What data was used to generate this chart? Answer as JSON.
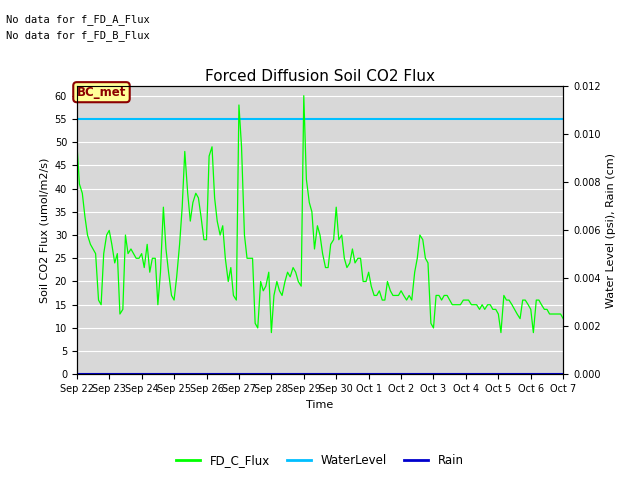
{
  "title": "Forced Diffusion Soil CO2 Flux",
  "xlabel": "Time",
  "ylabel_left": "Soil CO2 Flux (umol/m2/s)",
  "ylabel_right": "Water Level (psi), Rain (cm)",
  "no_data_text": [
    "No data for f_FD_A_Flux",
    "No data for f_FD_B_Flux"
  ],
  "bc_met_label": "BC_met",
  "bc_met_box_color": "#ffff99",
  "bc_met_text_color": "#8B0000",
  "ylim_left": [
    0,
    62
  ],
  "ylim_right": [
    0,
    0.012
  ],
  "water_level_value": 55,
  "water_level_color": "#00BFFF",
  "rain_value": 0,
  "rain_color": "#0000CD",
  "flux_color": "#00FF00",
  "background_color": "#D8D8D8",
  "grid_color": "#FFFFFF",
  "legend_entries": [
    "FD_C_Flux",
    "WaterLevel",
    "Rain"
  ],
  "legend_colors": [
    "#00FF00",
    "#00BFFF",
    "#0000CD"
  ],
  "x_tick_labels": [
    "Sep 22",
    "Sep 23",
    "Sep 24",
    "Sep 25",
    "Sep 26",
    "Sep 27",
    "Sep 28",
    "Sep 29",
    "Sep 30",
    "Oct 1",
    "Oct 2",
    "Oct 3",
    "Oct 4",
    "Oct 5",
    "Oct 6",
    "Oct 7"
  ],
  "fd_c_flux_data": {
    "dates_offset": [
      0.0,
      0.08,
      0.17,
      0.25,
      0.33,
      0.42,
      0.5,
      0.58,
      0.67,
      0.75,
      0.83,
      0.92,
      1.0,
      1.08,
      1.17,
      1.25,
      1.33,
      1.42,
      1.5,
      1.58,
      1.67,
      1.75,
      1.83,
      1.92,
      2.0,
      2.08,
      2.17,
      2.25,
      2.33,
      2.42,
      2.5,
      2.58,
      2.67,
      2.75,
      2.83,
      2.92,
      3.0,
      3.08,
      3.17,
      3.25,
      3.33,
      3.42,
      3.5,
      3.58,
      3.67,
      3.75,
      3.83,
      3.92,
      4.0,
      4.08,
      4.17,
      4.25,
      4.33,
      4.42,
      4.5,
      4.58,
      4.67,
      4.75,
      4.83,
      4.92,
      5.0,
      5.08,
      5.17,
      5.25,
      5.33,
      5.42,
      5.5,
      5.58,
      5.67,
      5.75,
      5.83,
      5.92,
      6.0,
      6.08,
      6.17,
      6.25,
      6.33,
      6.42,
      6.5,
      6.58,
      6.67,
      6.75,
      6.83,
      6.92,
      7.0,
      7.08,
      7.17,
      7.25,
      7.33,
      7.42,
      7.5,
      7.58,
      7.67,
      7.75,
      7.83,
      7.92,
      8.0,
      8.08,
      8.17,
      8.25,
      8.33,
      8.42,
      8.5,
      8.58,
      8.67,
      8.75,
      8.83,
      8.92,
      9.0,
      9.08,
      9.17,
      9.25,
      9.33,
      9.42,
      9.5,
      9.58,
      9.67,
      9.75,
      9.83,
      9.92,
      10.0,
      10.08,
      10.17,
      10.25,
      10.33,
      10.42,
      10.5,
      10.58,
      10.67,
      10.75,
      10.83,
      10.92,
      11.0,
      11.08,
      11.17,
      11.25,
      11.33,
      11.42,
      11.5,
      11.58,
      11.67,
      11.75,
      11.83,
      11.92,
      12.0,
      12.08,
      12.17,
      12.25,
      12.33,
      12.42,
      12.5,
      12.58,
      12.67,
      12.75,
      12.83,
      12.92,
      13.0,
      13.08,
      13.17,
      13.25,
      13.33,
      13.42,
      13.5,
      13.58,
      13.67,
      13.75,
      13.83,
      13.92,
      14.0,
      14.08,
      14.17,
      14.25,
      14.33,
      14.42,
      14.5,
      14.58,
      14.67,
      14.75,
      14.83,
      14.92,
      15.0
    ],
    "values": [
      50,
      41,
      39,
      34,
      30,
      28,
      27,
      26,
      16,
      15,
      26,
      30,
      31,
      28,
      24,
      26,
      13,
      14,
      30,
      26,
      27,
      26,
      25,
      25,
      26,
      23,
      28,
      22,
      25,
      25,
      15,
      22,
      36,
      27,
      22,
      17,
      16,
      21,
      28,
      36,
      48,
      39,
      33,
      37,
      39,
      38,
      34,
      29,
      29,
      47,
      49,
      38,
      33,
      30,
      32,
      25,
      20,
      23,
      17,
      16,
      58,
      49,
      30,
      25,
      25,
      25,
      11,
      10,
      20,
      18,
      19,
      22,
      9,
      17,
      20,
      18,
      17,
      20,
      22,
      21,
      23,
      22,
      20,
      19,
      60,
      42,
      37,
      35,
      27,
      32,
      30,
      26,
      23,
      23,
      28,
      29,
      36,
      29,
      30,
      25,
      23,
      24,
      27,
      24,
      25,
      25,
      20,
      20,
      22,
      19,
      17,
      17,
      18,
      16,
      16,
      20,
      18,
      17,
      17,
      17,
      18,
      17,
      16,
      17,
      16,
      22,
      25,
      30,
      29,
      25,
      24,
      11,
      10,
      17,
      17,
      16,
      17,
      17,
      16,
      15,
      15,
      15,
      15,
      16,
      16,
      16,
      15,
      15,
      15,
      14,
      15,
      14,
      15,
      15,
      14,
      14,
      13,
      9,
      17,
      16,
      16,
      15,
      14,
      13,
      12,
      16,
      16,
      15,
      14,
      9,
      16,
      16,
      15,
      14,
      14,
      13,
      13,
      13,
      13,
      13,
      12
    ]
  }
}
